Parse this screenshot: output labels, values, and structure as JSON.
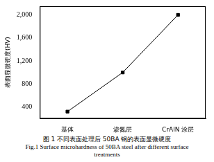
{
  "chart_data": {
    "type": "line",
    "title": "图 1 不同表面处理后 50BA 钢的表面显微硬度",
    "subtitle": "Fig.1 Surface microhardness of 50BA steel after different surface treatments",
    "y_label": "表面显微硬度(HV)",
    "categories": [
      "基体",
      "渗氮层",
      "CrAlN 涂层"
    ],
    "values": [
      320,
      1000,
      2000
    ],
    "color": "#000000",
    "marker": "square",
    "ylim": [
      200,
      2150
    ],
    "yticks": [
      400,
      800,
      1200,
      1600,
      2000
    ],
    "grid": false
  }
}
